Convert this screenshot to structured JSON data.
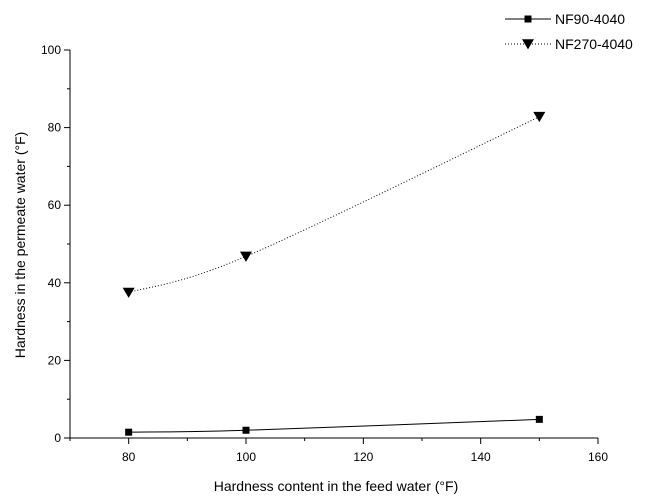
{
  "chart_data": {
    "type": "line",
    "title": "",
    "xlabel": "Hardness content in the feed water (°F)",
    "ylabel": "Hardness in the permeate water (°F)",
    "xlim": [
      70,
      160
    ],
    "ylim": [
      0,
      100
    ],
    "xticks": [
      80,
      100,
      120,
      140,
      160
    ],
    "yticks": [
      0,
      20,
      40,
      60,
      80,
      100
    ],
    "grid": false,
    "legend_position": "top-right",
    "x": [
      80,
      100,
      150
    ],
    "series": [
      {
        "name": "NF90-4040",
        "values": [
          1.5,
          2.0,
          4.8
        ],
        "marker": "square",
        "line_style": "solid",
        "color": "#000000"
      },
      {
        "name": "NF270-4040",
        "values": [
          37.5,
          46.8,
          82.8
        ],
        "marker": "triangle-down",
        "line_style": "dotted",
        "color": "#000000"
      }
    ]
  }
}
